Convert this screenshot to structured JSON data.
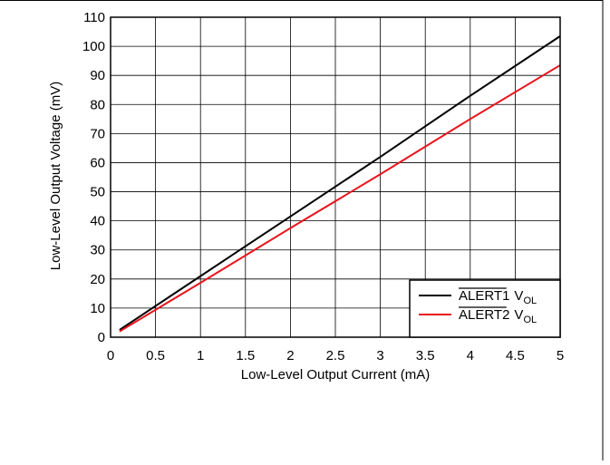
{
  "chart_data": {
    "type": "line",
    "xlabel": "Low-Level Output Current (mA)",
    "ylabel": "Low-Level Output Voltage (mV)",
    "xlim": [
      0,
      5
    ],
    "ylim": [
      0,
      110
    ],
    "x_ticks": [
      "0",
      "0.5",
      "1",
      "1.5",
      "2",
      "2.5",
      "3",
      "3.5",
      "4",
      "4.5",
      "5"
    ],
    "y_ticks": [
      "0",
      "10",
      "20",
      "30",
      "40",
      "50",
      "60",
      "70",
      "80",
      "90",
      "100",
      "110"
    ],
    "grid": true,
    "legend_position": "bottom-right",
    "series": [
      {
        "name": "ALERT1",
        "subscript": "OL",
        "name_prefix": "V",
        "color": "#000000",
        "x": [
          0.1,
          1,
          2,
          3,
          4,
          5
        ],
        "y": [
          2.5,
          21,
          41.5,
          62,
          83,
          103.5
        ]
      },
      {
        "name": "ALERT2",
        "subscript": "OL",
        "name_prefix": "V",
        "color": "#e8141c",
        "x": [
          0.1,
          1,
          2,
          3,
          4,
          5
        ],
        "y": [
          2,
          18.7,
          37.5,
          56,
          75,
          93.5
        ]
      }
    ]
  }
}
